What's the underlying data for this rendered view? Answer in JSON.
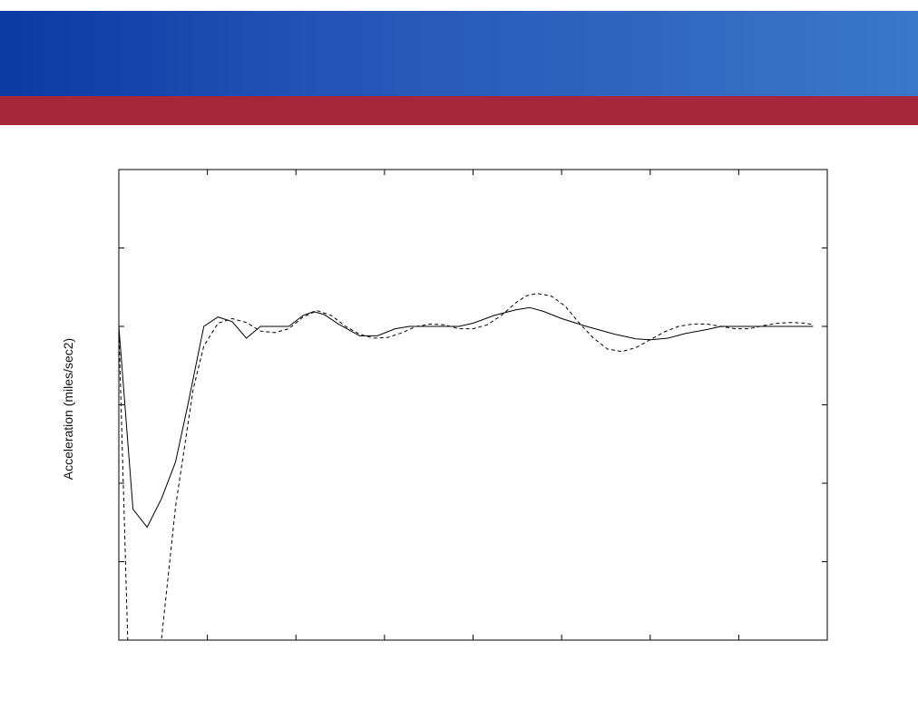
{
  "header": {
    "band_color_left": "#0b3aa2",
    "band_color_right": "#3a78c8",
    "stripe_color": "#a4273c"
  },
  "chart_data": {
    "type": "line",
    "title": "",
    "xlabel": "",
    "ylabel": "Acceleration (miles/sec2)",
    "xlim": [
      0,
      40
    ],
    "ylim": [
      -4,
      2
    ],
    "grid": false,
    "x_ticks": [
      0,
      5,
      10,
      15,
      20,
      25,
      30,
      35,
      40
    ],
    "y_ticks": [
      -4,
      -3,
      -2,
      -1,
      0,
      1,
      2
    ],
    "series": [
      {
        "style": "solid",
        "color": "#000000",
        "points": [
          [
            0,
            0
          ],
          [
            0.8,
            -2.33
          ],
          [
            1.6,
            -2.56
          ],
          [
            2.4,
            -2.2
          ],
          [
            3.2,
            -1.73
          ],
          [
            3.9,
            -1.0
          ],
          [
            4.8,
            0.0
          ],
          [
            5.6,
            0.12
          ],
          [
            6.4,
            0.06
          ],
          [
            7.2,
            -0.15
          ],
          [
            8.0,
            0.0
          ],
          [
            8.8,
            0.0
          ],
          [
            9.6,
            0.0
          ],
          [
            10.4,
            0.14
          ],
          [
            11.0,
            0.19
          ],
          [
            11.6,
            0.15
          ],
          [
            12.4,
            0.03
          ],
          [
            13.6,
            -0.12
          ],
          [
            14.6,
            -0.12
          ],
          [
            15.6,
            -0.03
          ],
          [
            16.4,
            0.0
          ],
          [
            18.0,
            0.0
          ],
          [
            19.2,
            0.0
          ],
          [
            20.0,
            0.04
          ],
          [
            21.2,
            0.14
          ],
          [
            22.4,
            0.21
          ],
          [
            23.2,
            0.24
          ],
          [
            24.0,
            0.19
          ],
          [
            25.0,
            0.1
          ],
          [
            26.4,
            0.0
          ],
          [
            28.0,
            -0.1
          ],
          [
            29.2,
            -0.16
          ],
          [
            30.0,
            -0.17
          ],
          [
            31.0,
            -0.15
          ],
          [
            32.0,
            -0.09
          ],
          [
            33.2,
            -0.04
          ],
          [
            34.0,
            0.0
          ],
          [
            35.6,
            0.0
          ],
          [
            37.6,
            0.0
          ],
          [
            39.2,
            0.0
          ]
        ]
      },
      {
        "style": "dashed",
        "color": "#000000",
        "points": [
          [
            0,
            0
          ],
          [
            0.5,
            -4.0
          ],
          [
            2.4,
            -4.0
          ],
          [
            3.2,
            -2.3
          ],
          [
            4.2,
            -0.8
          ],
          [
            4.8,
            -0.25
          ],
          [
            5.6,
            0.04
          ],
          [
            6.4,
            0.1
          ],
          [
            7.2,
            0.05
          ],
          [
            8.0,
            -0.06
          ],
          [
            8.8,
            -0.08
          ],
          [
            9.6,
            -0.03
          ],
          [
            10.4,
            0.12
          ],
          [
            11.2,
            0.2
          ],
          [
            12.0,
            0.14
          ],
          [
            12.8,
            0.0
          ],
          [
            13.6,
            -0.1
          ],
          [
            14.4,
            -0.15
          ],
          [
            15.2,
            -0.14
          ],
          [
            16.0,
            -0.08
          ],
          [
            16.8,
            0.0
          ],
          [
            17.6,
            0.03
          ],
          [
            18.4,
            0.02
          ],
          [
            19.2,
            -0.03
          ],
          [
            20.0,
            -0.03
          ],
          [
            20.8,
            0.02
          ],
          [
            21.6,
            0.14
          ],
          [
            22.4,
            0.3
          ],
          [
            23.0,
            0.39
          ],
          [
            23.6,
            0.42
          ],
          [
            24.4,
            0.39
          ],
          [
            25.2,
            0.26
          ],
          [
            26.0,
            0.04
          ],
          [
            26.8,
            -0.15
          ],
          [
            27.6,
            -0.29
          ],
          [
            28.4,
            -0.32
          ],
          [
            29.2,
            -0.27
          ],
          [
            30.0,
            -0.17
          ],
          [
            30.8,
            -0.07
          ],
          [
            31.6,
            0.0
          ],
          [
            32.4,
            0.03
          ],
          [
            33.2,
            0.03
          ],
          [
            34.0,
            0.0
          ],
          [
            34.8,
            -0.03
          ],
          [
            35.6,
            -0.03
          ],
          [
            36.4,
            0.01
          ],
          [
            37.2,
            0.04
          ],
          [
            38.0,
            0.05
          ],
          [
            38.8,
            0.04
          ],
          [
            39.2,
            0.02
          ]
        ]
      }
    ]
  }
}
